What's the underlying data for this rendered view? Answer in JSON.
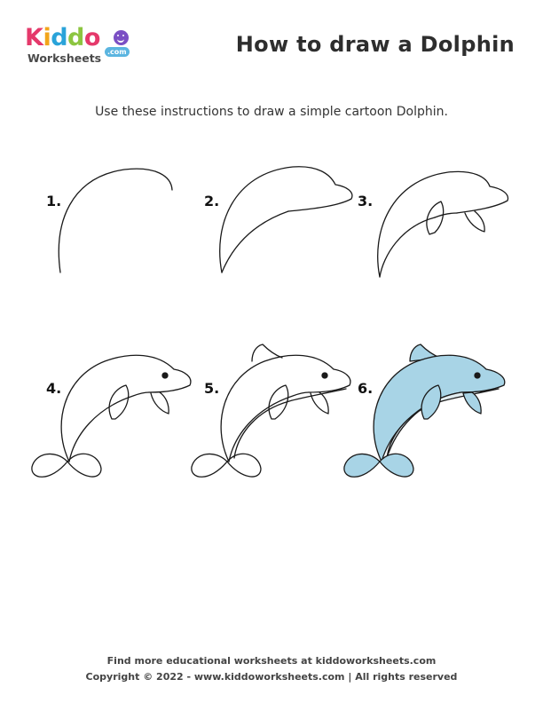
{
  "logo": {
    "letters": [
      "K",
      "i",
      "d",
      "d",
      "o"
    ],
    "sub": "Worksheets",
    "com": ".com"
  },
  "title": "How to draw a Dolphin",
  "subtitle": "Use these instructions to draw a simple cartoon Dolphin.",
  "steps": [
    "1.",
    "2.",
    "3.",
    "4.",
    "5.",
    "6."
  ],
  "footer": {
    "line1": "Find more educational worksheets at kiddoworksheets.com",
    "line2": "Copyright © 2022 - www.kiddoworksheets.com  |  All rights reserved"
  },
  "colors": {
    "dolphin_body": "#a8d4e6",
    "dolphin_belly": "#e3eef2",
    "outline": "#1a1a1a"
  }
}
